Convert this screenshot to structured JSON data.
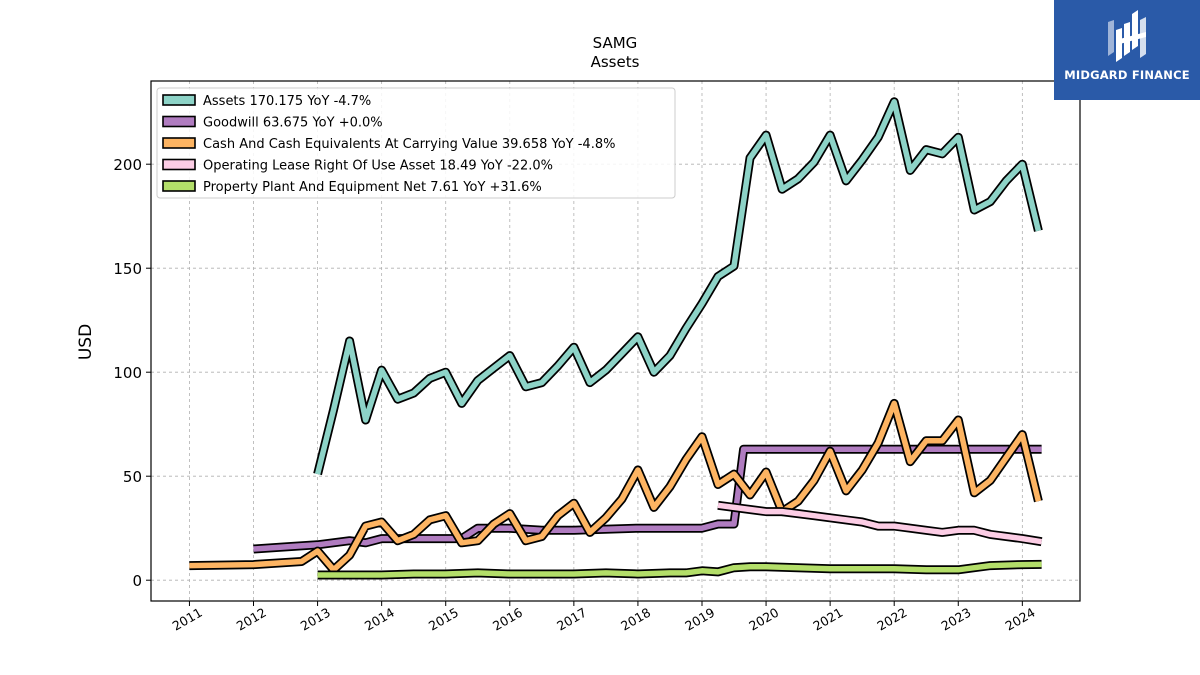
{
  "brand": {
    "name": "MIDGARD FINANCE",
    "logo_color": "#2a5aa8"
  },
  "chart_data": {
    "type": "line",
    "title": "SAMG",
    "subtitle": "Assets",
    "ylabel": "USD",
    "xlabel": "",
    "ylim": [
      -10,
      240
    ],
    "xlim": [
      2010.4,
      2024.9
    ],
    "yticks": [
      0,
      50,
      100,
      150,
      200
    ],
    "xticks": [
      "2011",
      "2012",
      "2013",
      "2014",
      "2015",
      "2016",
      "2017",
      "2018",
      "2019",
      "2020",
      "2021",
      "2022",
      "2023",
      "2024"
    ],
    "grid": true,
    "legend_position": "top-left",
    "series": [
      {
        "name": "Assets",
        "legend": "Assets  170.175 YoY -4.7%",
        "color": "#8dd3c7",
        "points": [
          [
            2013.0,
            51
          ],
          [
            2013.25,
            82
          ],
          [
            2013.5,
            115
          ],
          [
            2013.75,
            77
          ],
          [
            2014.0,
            101
          ],
          [
            2014.25,
            87
          ],
          [
            2014.5,
            90
          ],
          [
            2014.75,
            97
          ],
          [
            2015.0,
            100
          ],
          [
            2015.25,
            85
          ],
          [
            2015.5,
            96
          ],
          [
            2015.75,
            102
          ],
          [
            2016.0,
            108
          ],
          [
            2016.25,
            93
          ],
          [
            2016.5,
            95
          ],
          [
            2016.75,
            103
          ],
          [
            2017.0,
            112
          ],
          [
            2017.25,
            95
          ],
          [
            2017.5,
            101
          ],
          [
            2017.75,
            109
          ],
          [
            2018.0,
            117
          ],
          [
            2018.25,
            100
          ],
          [
            2018.5,
            108
          ],
          [
            2018.75,
            121
          ],
          [
            2019.0,
            133
          ],
          [
            2019.25,
            146
          ],
          [
            2019.5,
            151
          ],
          [
            2019.75,
            203
          ],
          [
            2020.0,
            214
          ],
          [
            2020.25,
            188
          ],
          [
            2020.5,
            193
          ],
          [
            2020.75,
            201
          ],
          [
            2021.0,
            214
          ],
          [
            2021.25,
            192
          ],
          [
            2021.5,
            202
          ],
          [
            2021.75,
            213
          ],
          [
            2022.0,
            230
          ],
          [
            2022.25,
            197
          ],
          [
            2022.5,
            207
          ],
          [
            2022.75,
            205
          ],
          [
            2023.0,
            213
          ],
          [
            2023.25,
            178
          ],
          [
            2023.5,
            182
          ],
          [
            2023.75,
            192
          ],
          [
            2024.0,
            200
          ],
          [
            2024.25,
            168
          ]
        ]
      },
      {
        "name": "Goodwill",
        "legend": "Goodwill  63.675 YoY +0.0%",
        "color": "#b07cc0",
        "points": [
          [
            2012.0,
            15
          ],
          [
            2012.5,
            16
          ],
          [
            2013.0,
            17
          ],
          [
            2013.5,
            19
          ],
          [
            2013.75,
            18
          ],
          [
            2014.0,
            20
          ],
          [
            2014.5,
            20
          ],
          [
            2015.0,
            20
          ],
          [
            2015.25,
            20
          ],
          [
            2015.5,
            25
          ],
          [
            2016.0,
            25
          ],
          [
            2016.5,
            24
          ],
          [
            2017.0,
            24
          ],
          [
            2018.0,
            25
          ],
          [
            2019.0,
            25
          ],
          [
            2019.25,
            27
          ],
          [
            2019.5,
            27
          ],
          [
            2019.65,
            63
          ],
          [
            2020.0,
            63
          ],
          [
            2021.0,
            63
          ],
          [
            2022.0,
            63
          ],
          [
            2023.0,
            63
          ],
          [
            2024.0,
            63
          ],
          [
            2024.3,
            63
          ]
        ]
      },
      {
        "name": "Cash And Cash Equivalents At Carrying Value",
        "legend": "Cash And Cash Equivalents At Carrying Value  39.658 YoY -4.8%",
        "color": "#fdb462",
        "points": [
          [
            2011.0,
            7
          ],
          [
            2012.0,
            7.5
          ],
          [
            2012.75,
            9
          ],
          [
            2013.0,
            14
          ],
          [
            2013.25,
            5
          ],
          [
            2013.5,
            12
          ],
          [
            2013.75,
            26
          ],
          [
            2014.0,
            28
          ],
          [
            2014.25,
            19
          ],
          [
            2014.5,
            22
          ],
          [
            2014.75,
            29
          ],
          [
            2015.0,
            31
          ],
          [
            2015.25,
            18
          ],
          [
            2015.5,
            19
          ],
          [
            2015.75,
            27
          ],
          [
            2016.0,
            32
          ],
          [
            2016.25,
            19
          ],
          [
            2016.5,
            21
          ],
          [
            2016.75,
            31
          ],
          [
            2017.0,
            37
          ],
          [
            2017.25,
            23
          ],
          [
            2017.5,
            30
          ],
          [
            2017.75,
            39
          ],
          [
            2018.0,
            53
          ],
          [
            2018.25,
            35
          ],
          [
            2018.5,
            45
          ],
          [
            2018.75,
            58
          ],
          [
            2019.0,
            69
          ],
          [
            2019.25,
            46
          ],
          [
            2019.5,
            51
          ],
          [
            2019.75,
            41
          ],
          [
            2020.0,
            52
          ],
          [
            2020.25,
            33
          ],
          [
            2020.5,
            38
          ],
          [
            2020.75,
            48
          ],
          [
            2021.0,
            62
          ],
          [
            2021.25,
            43
          ],
          [
            2021.5,
            53
          ],
          [
            2021.75,
            66
          ],
          [
            2022.0,
            85
          ],
          [
            2022.25,
            57
          ],
          [
            2022.5,
            67
          ],
          [
            2022.75,
            67
          ],
          [
            2023.0,
            77
          ],
          [
            2023.25,
            42
          ],
          [
            2023.5,
            48
          ],
          [
            2023.75,
            59
          ],
          [
            2024.0,
            70
          ],
          [
            2024.25,
            38
          ]
        ]
      },
      {
        "name": "Operating Lease Right Of Use Asset",
        "legend": "Operating Lease Right Of Use Asset  18.49 YoY -22.0%",
        "color": "#fccde5",
        "points": [
          [
            2019.25,
            36
          ],
          [
            2019.5,
            35
          ],
          [
            2019.75,
            34
          ],
          [
            2020.0,
            33
          ],
          [
            2020.25,
            33
          ],
          [
            2020.5,
            32
          ],
          [
            2020.75,
            31
          ],
          [
            2021.0,
            30
          ],
          [
            2021.25,
            29
          ],
          [
            2021.5,
            28
          ],
          [
            2021.75,
            26
          ],
          [
            2022.0,
            26
          ],
          [
            2022.25,
            25
          ],
          [
            2022.5,
            24
          ],
          [
            2022.75,
            23
          ],
          [
            2023.0,
            24
          ],
          [
            2023.25,
            24
          ],
          [
            2023.5,
            22
          ],
          [
            2023.75,
            21
          ],
          [
            2024.0,
            20
          ],
          [
            2024.3,
            18.5
          ]
        ]
      },
      {
        "name": "Property Plant And Equipment Net",
        "legend": "Property Plant And Equipment Net  7.61 YoY +31.6%",
        "color": "#b3de69",
        "points": [
          [
            2013.0,
            2.5
          ],
          [
            2013.5,
            2.5
          ],
          [
            2014.0,
            2.5
          ],
          [
            2014.5,
            3
          ],
          [
            2015.0,
            3
          ],
          [
            2015.5,
            3.5
          ],
          [
            2016.0,
            3
          ],
          [
            2016.5,
            3
          ],
          [
            2017.0,
            3
          ],
          [
            2017.5,
            3.5
          ],
          [
            2018.0,
            3
          ],
          [
            2018.5,
            3.5
          ],
          [
            2018.75,
            3.5
          ],
          [
            2019.0,
            4.5
          ],
          [
            2019.25,
            4
          ],
          [
            2019.5,
            6
          ],
          [
            2019.75,
            6.5
          ],
          [
            2020.0,
            6.5
          ],
          [
            2020.5,
            6
          ],
          [
            2021.0,
            5.5
          ],
          [
            2021.5,
            5.5
          ],
          [
            2022.0,
            5.5
          ],
          [
            2022.5,
            5
          ],
          [
            2023.0,
            5
          ],
          [
            2023.25,
            6
          ],
          [
            2023.5,
            7
          ],
          [
            2024.0,
            7.5
          ],
          [
            2024.3,
            7.6
          ]
        ]
      }
    ]
  }
}
